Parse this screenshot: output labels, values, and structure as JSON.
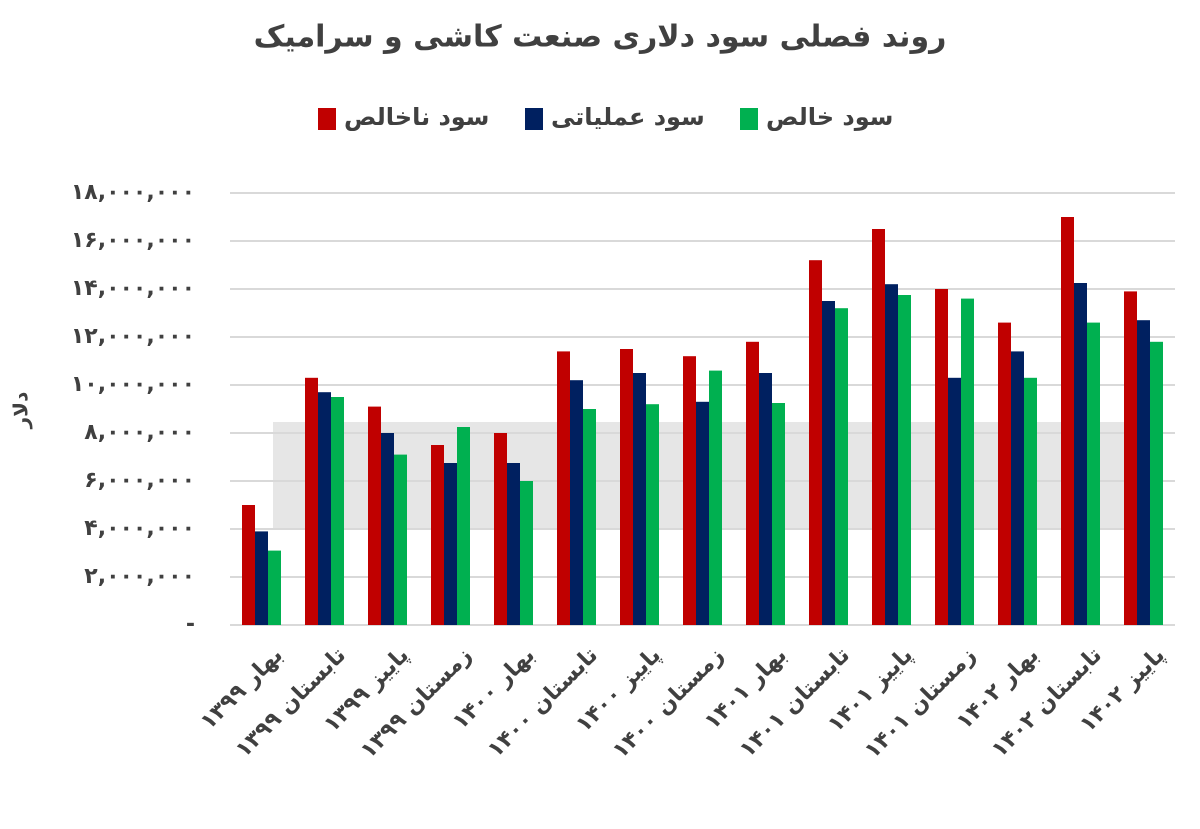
{
  "chart_data": {
    "type": "bar",
    "title": "روند فصلی سود دلاری صنعت کاشی و سرامیک",
    "y_label": "دلار",
    "categories": [
      "بهار ۱۳۹۹",
      "تابستان ۱۳۹۹",
      "پاییز ۱۳۹۹",
      "زمستان ۱۳۹۹",
      "بهار ۱۴۰۰",
      "تابستان ۱۴۰۰",
      "پاییز ۱۴۰۰",
      "زمستان ۱۴۰۰",
      "بهار ۱۴۰۱",
      "تابستان ۱۴۰۱",
      "پاییز ۱۴۰۱",
      "زمستان ۱۴۰۱",
      "بهار ۱۴۰۲",
      "تابستان ۱۴۰۲",
      "پاییز ۱۴۰۲"
    ],
    "series": [
      {
        "name": "سود ناخالص",
        "color": "#c00000",
        "values": [
          5000000,
          10300000,
          9100000,
          7500000,
          8000000,
          11400000,
          11500000,
          11200000,
          11800000,
          15200000,
          16500000,
          14000000,
          12600000,
          17000000,
          13900000
        ]
      },
      {
        "name": "سود عملیاتی",
        "color": "#002060",
        "values": [
          3900000,
          9700000,
          8000000,
          6750000,
          6750000,
          10200000,
          10500000,
          9300000,
          10500000,
          13500000,
          14200000,
          10300000,
          11400000,
          14250000,
          12700000
        ]
      },
      {
        "name": "سود خالص",
        "color": "#00b050",
        "values": [
          3100000,
          9500000,
          7100000,
          8250000,
          6000000,
          9000000,
          9200000,
          10600000,
          9250000,
          13200000,
          13750000,
          13600000,
          10300000,
          12600000,
          11800000
        ]
      }
    ],
    "ylim": [
      0,
      18000000
    ],
    "yticks": [
      {
        "value": 0,
        "label": "-"
      },
      {
        "value": 2000000,
        "label": "۲,۰۰۰,۰۰۰"
      },
      {
        "value": 4000000,
        "label": "۴,۰۰۰,۰۰۰"
      },
      {
        "value": 6000000,
        "label": "۶,۰۰۰,۰۰۰"
      },
      {
        "value": 8000000,
        "label": "۸,۰۰۰,۰۰۰"
      },
      {
        "value": 10000000,
        "label": "۱۰,۰۰۰,۰۰۰"
      },
      {
        "value": 12000000,
        "label": "۱۲,۰۰۰,۰۰۰"
      },
      {
        "value": 14000000,
        "label": "۱۴,۰۰۰,۰۰۰"
      },
      {
        "value": 16000000,
        "label": "۱۶,۰۰۰,۰۰۰"
      },
      {
        "value": 18000000,
        "label": "۱۸,۰۰۰,۰۰۰"
      }
    ],
    "grid": true
  }
}
